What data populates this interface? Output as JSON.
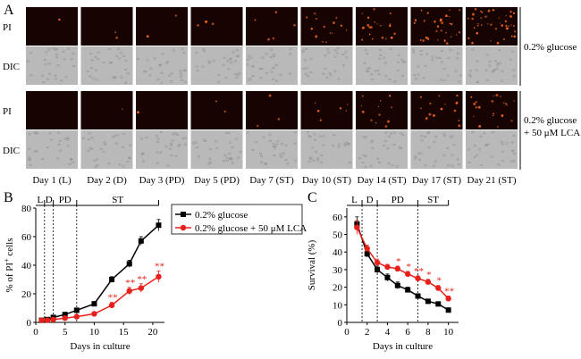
{
  "panel_a": {
    "letter": "A",
    "row_labels": [
      "PI",
      "DIC",
      "PI",
      "DIC"
    ],
    "group_labels": [
      {
        "lines": [
          "0.2% glucose"
        ]
      },
      {
        "lines": [
          "0.2% glucose",
          "+ 50 μM LCA"
        ]
      }
    ],
    "days": [
      "Day 1 (L)",
      "Day 2 (D)",
      "Day 3 (PD)",
      "Day 5 (PD)",
      "Day 7 (ST)",
      "Day 10 (ST)",
      "Day 14 (ST)",
      "Day 17 (ST)",
      "Day 21 (ST)"
    ],
    "pi_spot_density": {
      "glucose": [
        1,
        2,
        2,
        3,
        5,
        14,
        20,
        30,
        40
      ],
      "lca": [
        0,
        1,
        1,
        2,
        3,
        6,
        12,
        15,
        20
      ]
    },
    "colors": {
      "pi_bg": "#170402",
      "pi_spot": "#ff6a1e",
      "dic_bg": "#b9b9b9",
      "dic_cell": "#8c8c8c"
    }
  },
  "chart_data": [
    {
      "panel": "B",
      "type": "line",
      "xlabel": "Days in culture",
      "ylabel_main": "% of PI",
      "ylabel_sup": "+",
      "ylabel_tail": " cells",
      "xlim": [
        0,
        22
      ],
      "ylim": [
        0,
        80
      ],
      "xticks": [
        0,
        5,
        10,
        15,
        20
      ],
      "yticks": [
        0,
        20,
        40,
        60,
        80
      ],
      "phases": [
        {
          "label": "L",
          "start": 0,
          "end": 1.5
        },
        {
          "label": "D",
          "start": 1.5,
          "end": 3
        },
        {
          "label": "PD",
          "start": 3,
          "end": 7
        },
        {
          "label": "ST",
          "start": 7,
          "end": 21
        }
      ],
      "legend": [
        "0.2% glucose",
        "0.2% glucose + 50 μM LCA"
      ],
      "series": [
        {
          "name": "0.2% glucose",
          "color": "#000000",
          "marker": "square",
          "x": [
            1,
            2,
            3,
            5,
            7,
            10,
            13,
            16,
            18,
            21
          ],
          "y": [
            1.5,
            2,
            3.5,
            5.5,
            8.5,
            13,
            30,
            41,
            57,
            68
          ],
          "err": [
            0.5,
            0.5,
            0.6,
            0.8,
            1,
            1.5,
            2,
            2.5,
            3,
            4
          ],
          "sig": [
            "",
            "",
            "",
            "",
            "",
            "",
            "",
            "",
            "",
            ""
          ]
        },
        {
          "name": "0.2% glucose + 50 μM LCA",
          "color": "#e8201b",
          "marker": "circle",
          "x": [
            1,
            2,
            3,
            5,
            7,
            10,
            13,
            16,
            18,
            21
          ],
          "y": [
            1.5,
            1.5,
            2,
            3,
            4,
            6,
            12,
            22,
            24,
            32
          ],
          "err": [
            0.5,
            0.5,
            0.5,
            0.6,
            0.8,
            1,
            2,
            2.5,
            3,
            4
          ],
          "sig": [
            "",
            "",
            "",
            "",
            "",
            "",
            "**",
            "**",
            "**",
            "**"
          ]
        }
      ]
    },
    {
      "panel": "C",
      "type": "line",
      "xlabel": "Days in culture",
      "ylabel": "Survival (%)",
      "xlim": [
        0,
        11
      ],
      "ylim": [
        0,
        65
      ],
      "xticks": [
        0,
        2,
        4,
        6,
        8,
        10
      ],
      "yticks": [
        0,
        10,
        20,
        30,
        40,
        50,
        60
      ],
      "phases": [
        {
          "label": "L",
          "start": 0,
          "end": 1.5
        },
        {
          "label": "D",
          "start": 1.5,
          "end": 3
        },
        {
          "label": "PD",
          "start": 3,
          "end": 7
        },
        {
          "label": "ST",
          "start": 7,
          "end": 10
        }
      ],
      "series": [
        {
          "name": "0.2% glucose",
          "color": "#000000",
          "marker": "square",
          "x": [
            1,
            2,
            3,
            4,
            5,
            6,
            7,
            8,
            9,
            10
          ],
          "y": [
            56,
            39,
            30,
            25.5,
            21,
            18.5,
            15,
            12,
            10.5,
            7
          ],
          "err": [
            4,
            2,
            2,
            2,
            2,
            1.5,
            1,
            1,
            1,
            0.8
          ],
          "sig": [
            "",
            "",
            "",
            "",
            "",
            "",
            "",
            "",
            "",
            ""
          ]
        },
        {
          "name": "0.2% glucose + 50 μM LCA",
          "color": "#e8201b",
          "marker": "circle",
          "x": [
            1,
            2,
            3,
            4,
            5,
            6,
            7,
            8,
            9,
            10
          ],
          "y": [
            54,
            42,
            34,
            31.5,
            30.5,
            27.5,
            25,
            23,
            19.5,
            13.5
          ],
          "err": [
            4,
            2,
            2,
            1.5,
            1.5,
            1.5,
            1.5,
            1.5,
            1.5,
            1.5
          ],
          "sig": [
            "",
            "",
            "",
            "",
            "*",
            "*",
            "**",
            "*",
            "*",
            "**"
          ]
        }
      ]
    }
  ]
}
